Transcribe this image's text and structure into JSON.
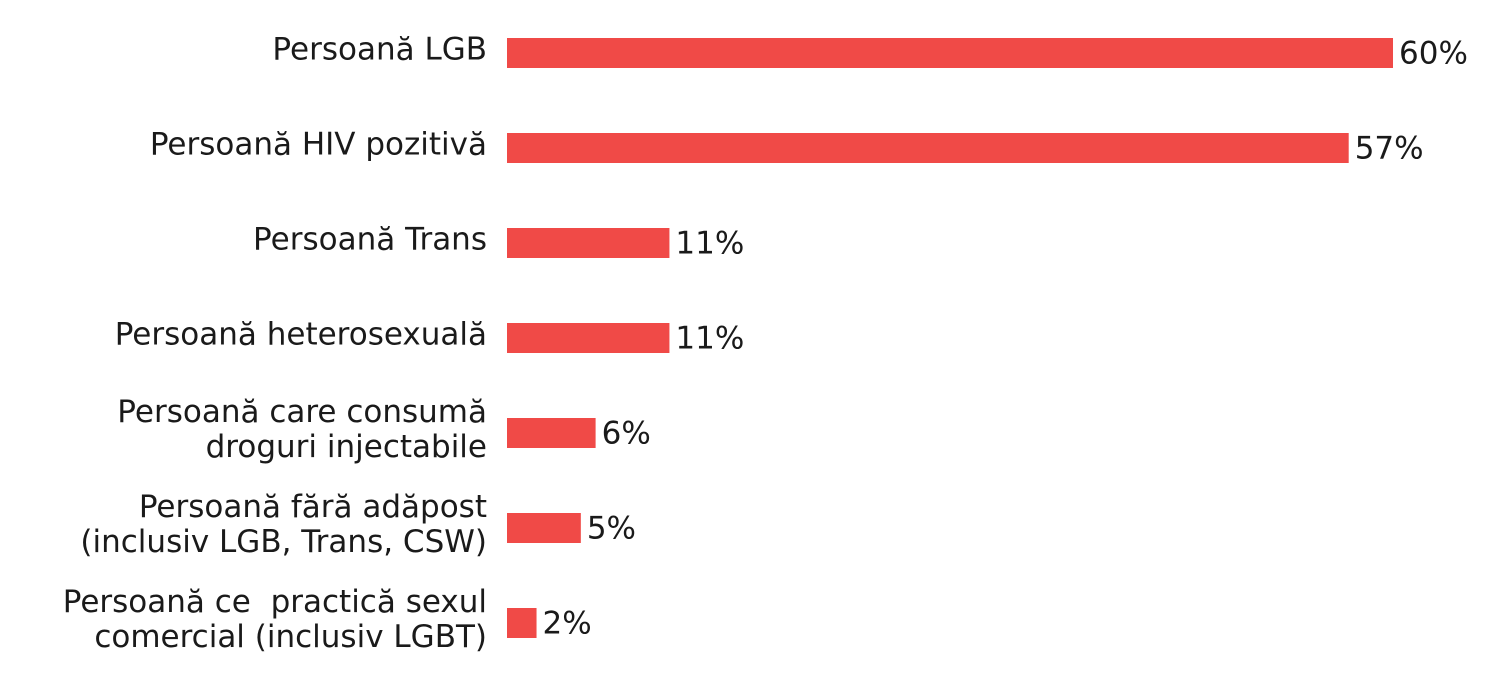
{
  "chart_data": {
    "type": "bar",
    "orientation": "horizontal",
    "categories": [
      [
        "Persoană LGB"
      ],
      [
        "Persoană HIV pozitivă"
      ],
      [
        "Persoană Trans"
      ],
      [
        "Persoană heterosexuală"
      ],
      [
        "Persoană care consumă",
        "droguri injectabile"
      ],
      [
        "Persoană fără adăpost",
        "(inclusiv LGB, Trans, CSW)"
      ],
      [
        "Persoană ce  practică sexul",
        "comercial (inclusiv LGBT)"
      ]
    ],
    "values": [
      60,
      57,
      11,
      11,
      6,
      5,
      2
    ],
    "value_labels": [
      "60%",
      "57%",
      "11%",
      "11%",
      "6%",
      "5%",
      "2%"
    ],
    "color": "#f04a47"
  }
}
